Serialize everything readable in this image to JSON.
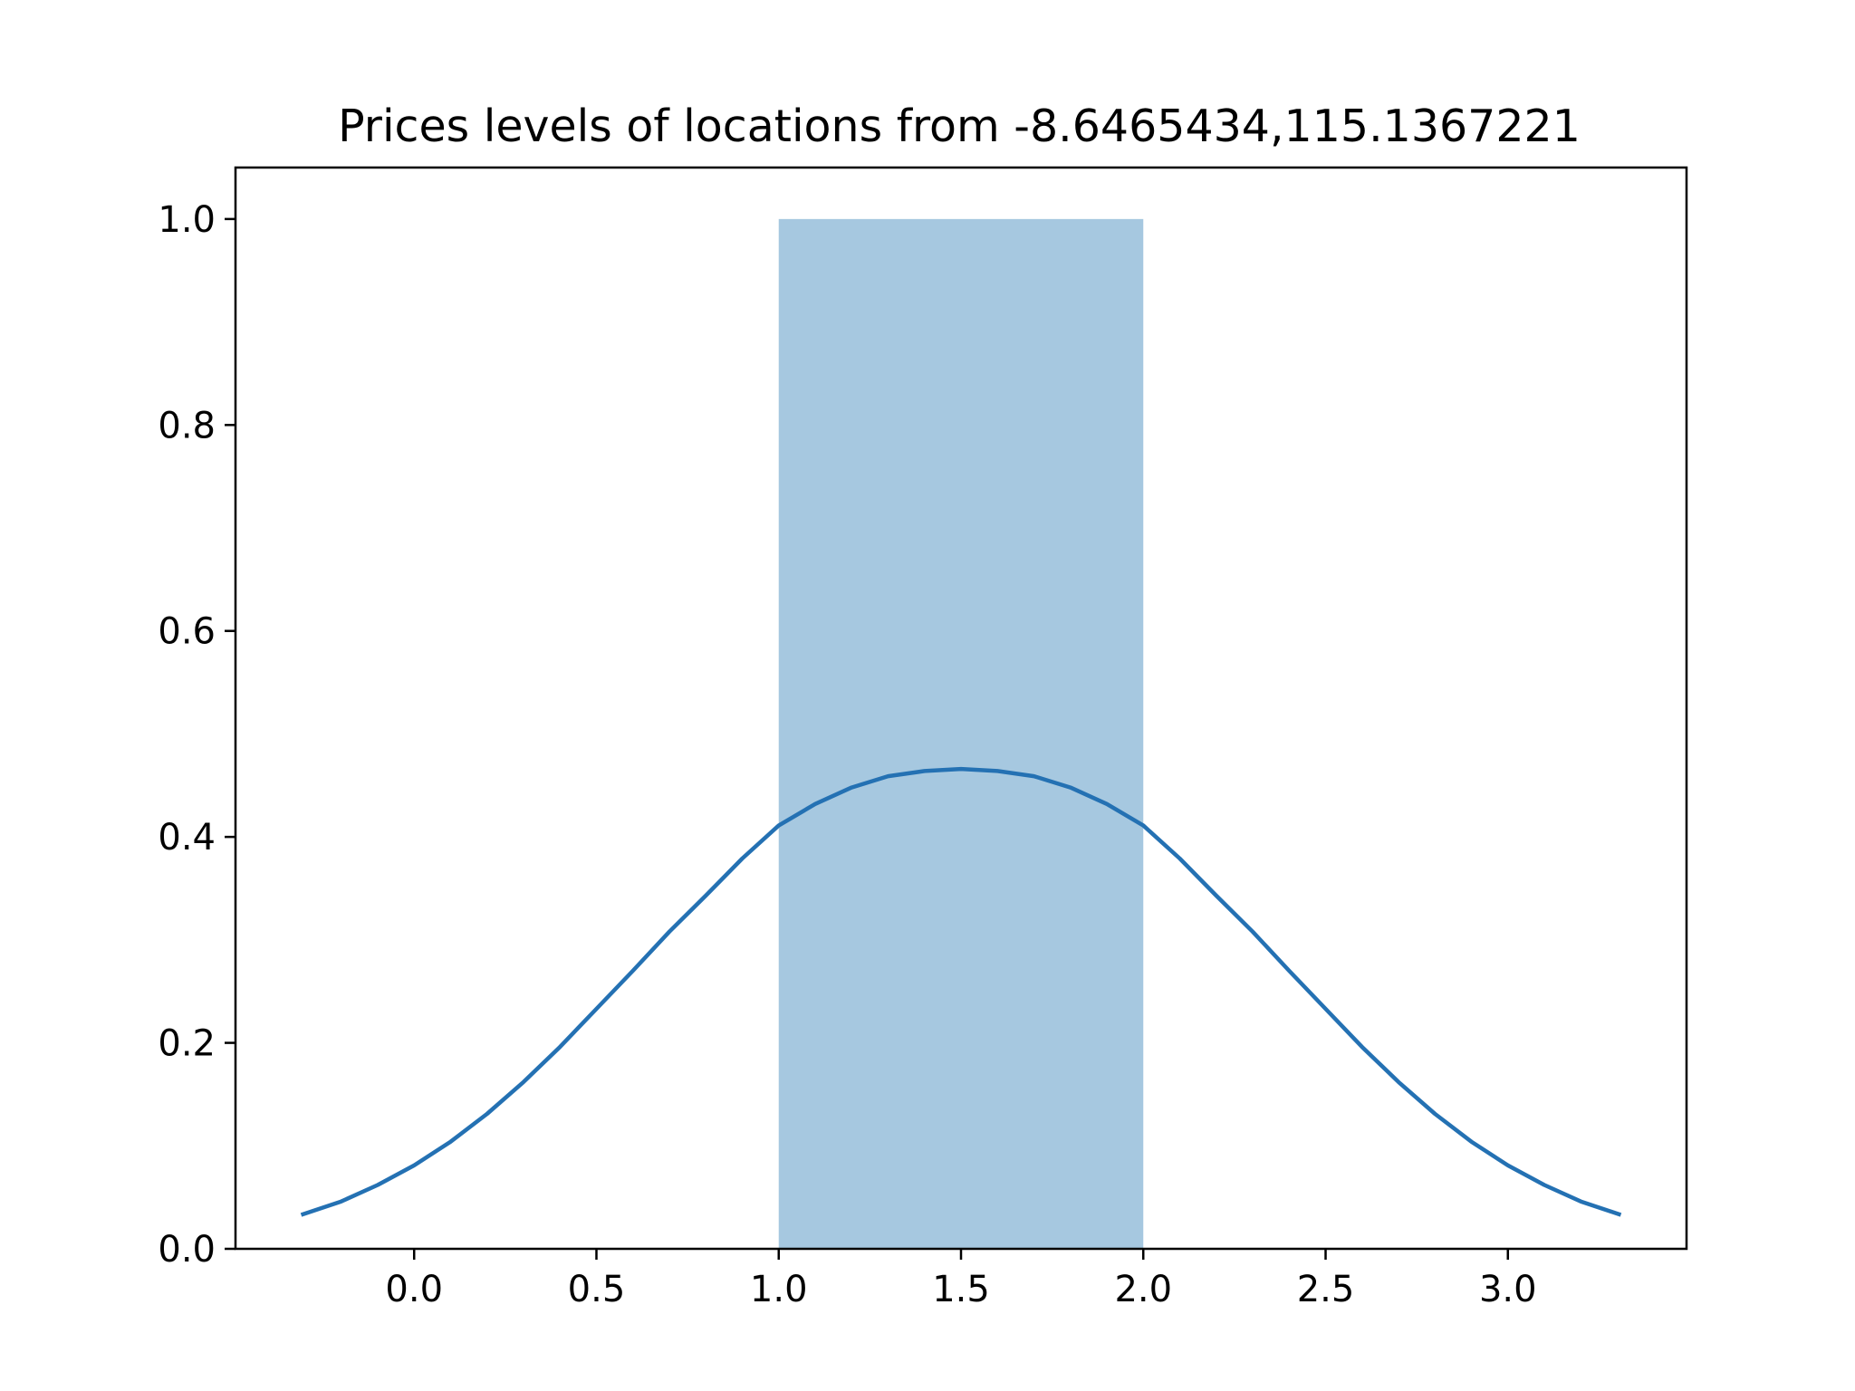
{
  "chart_data": {
    "type": "bar",
    "title": "Prices levels of locations from -8.6465434,115.1367221",
    "xlabel": "",
    "ylabel": "",
    "xlim": [
      -0.49,
      3.49
    ],
    "ylim": [
      0.0,
      1.05
    ],
    "x_ticks": [
      0.0,
      0.5,
      1.0,
      1.5,
      2.0,
      2.5,
      3.0
    ],
    "x_tick_labels": [
      "0.0",
      "0.5",
      "1.0",
      "1.5",
      "2.0",
      "2.5",
      "3.0"
    ],
    "y_ticks": [
      0.0,
      0.2,
      0.4,
      0.6,
      0.8,
      1.0
    ],
    "y_tick_labels": [
      "0.0",
      "0.2",
      "0.4",
      "0.6",
      "0.8",
      "1.0"
    ],
    "grid": false,
    "bars": [
      {
        "x_start": 1.0,
        "x_end": 2.0,
        "value": 1.0
      }
    ],
    "kde_curve": {
      "x": [
        -0.31,
        -0.2,
        -0.1,
        0.0,
        0.1,
        0.2,
        0.3,
        0.4,
        0.5,
        0.6,
        0.7,
        0.8,
        0.9,
        1.0,
        1.1,
        1.2,
        1.3,
        1.4,
        1.5,
        1.6,
        1.7,
        1.8,
        1.9,
        2.0,
        2.1,
        2.2,
        2.3,
        2.4,
        2.5,
        2.6,
        2.7,
        2.8,
        2.9,
        3.0,
        3.1,
        3.2,
        3.31
      ],
      "y": [
        0.033,
        0.046,
        0.062,
        0.081,
        0.104,
        0.131,
        0.162,
        0.196,
        0.233,
        0.27,
        0.308,
        0.343,
        0.379,
        0.411,
        0.432,
        0.448,
        0.459,
        0.464,
        0.466,
        0.464,
        0.459,
        0.448,
        0.432,
        0.411,
        0.379,
        0.343,
        0.308,
        0.27,
        0.233,
        0.196,
        0.162,
        0.131,
        0.104,
        0.081,
        0.062,
        0.046,
        0.033
      ]
    },
    "colors": {
      "bar_fill": "#a6c8e0",
      "curve": "#2471b3",
      "axes": "#000000"
    }
  }
}
